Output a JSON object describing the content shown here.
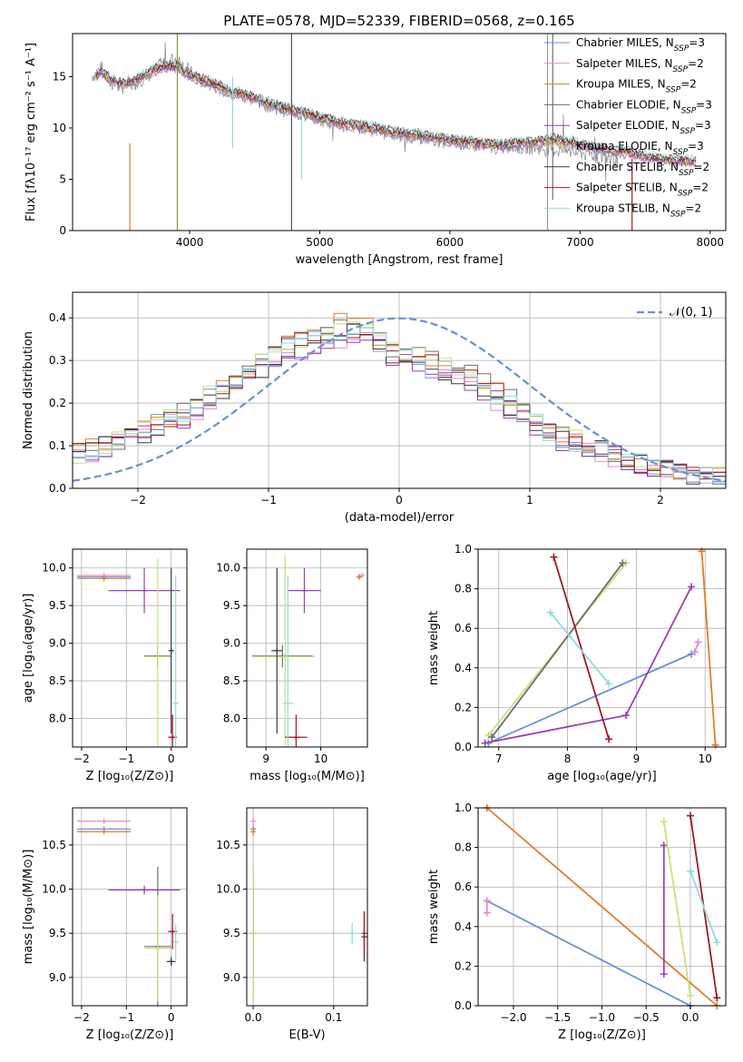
{
  "title": "PLATE=0578, MJD=52339, FIBERID=0568, z=0.165",
  "colors": {
    "chabrier_miles": "#6a8fd8",
    "salpeter_miles": "#e58ccb",
    "kroupa_miles": "#de7d2a",
    "chabrier_elodie": "#6e6e6e",
    "salpeter_elodie": "#9a3fb4",
    "kroupa_elodie": "#c7e27b",
    "chabrier_stelib": "#3a3a3a",
    "salpeter_stelib": "#9e1a22",
    "kroupa_stelib": "#8fdcdc",
    "data": "#888888",
    "normal": "#6a8fd8"
  },
  "chart_data": [
    {
      "id": "spectrum",
      "type": "line",
      "xlabel": "wavelength [Angstrom, rest frame]",
      "ylabel": "Flux [fλ10⁻¹⁷ erg cm⁻² s⁻¹ A⁻¹]",
      "xlim": [
        3100,
        8120
      ],
      "ylim": [
        0,
        19.2
      ],
      "xticks": [
        4000,
        5000,
        6000,
        7000,
        8000
      ],
      "yticks": [
        0,
        5,
        10,
        15
      ],
      "grid": false,
      "legend_position": "upper right",
      "legend": [
        {
          "key": "chabrier_miles",
          "label": "Chabrier MILES, N",
          "sub": "SSP",
          "n": "=3"
        },
        {
          "key": "salpeter_miles",
          "label": "Salpeter MILES, N",
          "sub": "SSP",
          "n": "=2"
        },
        {
          "key": "kroupa_miles",
          "label": "Kroupa MILES, N",
          "sub": "SSP",
          "n": "=2"
        },
        {
          "key": "chabrier_elodie",
          "label": "Chabrier ELODIE, N",
          "sub": "SSP",
          "n": "=3"
        },
        {
          "key": "salpeter_elodie",
          "label": "Salpeter ELODIE, N",
          "sub": "SSP",
          "n": "=3"
        },
        {
          "key": "kroupa_elodie",
          "label": "Kroupa ELODIE, N",
          "sub": "SSP",
          "n": "=3"
        },
        {
          "key": "chabrier_stelib",
          "label": "Chabrier STELIB, N",
          "sub": "SSP",
          "n": "=2"
        },
        {
          "key": "salpeter_stelib",
          "label": "Salpeter STELIB, N",
          "sub": "SSP",
          "n": "=2"
        },
        {
          "key": "kroupa_stelib",
          "label": "Kroupa STELIB, N",
          "sub": "SSP",
          "n": "=2"
        }
      ],
      "data_curve": [
        [
          3250,
          15.1
        ],
        [
          3320,
          15.8
        ],
        [
          3400,
          14.4
        ],
        [
          3500,
          14.0
        ],
        [
          3600,
          14.6
        ],
        [
          3700,
          15.3
        ],
        [
          3800,
          16.2
        ],
        [
          3900,
          16.8
        ],
        [
          4000,
          15.4
        ],
        [
          4100,
          14.6
        ],
        [
          4200,
          14.2
        ],
        [
          4300,
          13.4
        ],
        [
          4400,
          13.2
        ],
        [
          4500,
          12.8
        ],
        [
          4600,
          12.3
        ],
        [
          4700,
          11.9
        ],
        [
          4800,
          11.6
        ],
        [
          4900,
          11.3
        ],
        [
          5000,
          10.9
        ],
        [
          5100,
          10.6
        ],
        [
          5200,
          10.3
        ],
        [
          5400,
          9.9
        ],
        [
          5600,
          9.4
        ],
        [
          5800,
          9.1
        ],
        [
          6000,
          8.7
        ],
        [
          6200,
          8.4
        ],
        [
          6400,
          8.1
        ],
        [
          6600,
          8.2
        ],
        [
          6800,
          7.9
        ],
        [
          7000,
          7.6
        ],
        [
          7200,
          7.2
        ],
        [
          7300,
          6.9
        ]
      ],
      "model_curve": [
        [
          3280,
          15.0
        ],
        [
          3320,
          15.5
        ],
        [
          3400,
          14.6
        ],
        [
          3500,
          14.3
        ],
        [
          3600,
          14.8
        ],
        [
          3700,
          15.5
        ],
        [
          3800,
          16.0
        ],
        [
          3900,
          16.0
        ],
        [
          4000,
          15.2
        ],
        [
          4100,
          14.6
        ],
        [
          4200,
          14.3
        ],
        [
          4300,
          13.6
        ],
        [
          4400,
          13.3
        ],
        [
          4500,
          12.9
        ],
        [
          4600,
          12.4
        ],
        [
          4700,
          12.0
        ],
        [
          4800,
          11.7
        ],
        [
          4900,
          11.4
        ],
        [
          5000,
          11.0
        ],
        [
          5100,
          10.7
        ],
        [
          5200,
          10.4
        ],
        [
          5400,
          10.0
        ],
        [
          5600,
          9.5
        ],
        [
          5800,
          9.2
        ],
        [
          6000,
          8.8
        ],
        [
          6200,
          8.5
        ],
        [
          6400,
          8.3
        ],
        [
          6600,
          8.6
        ],
        [
          6800,
          8.9
        ],
        [
          7000,
          8.4
        ],
        [
          7200,
          7.9
        ],
        [
          7400,
          7.5
        ],
        [
          7600,
          7.0
        ],
        [
          7800,
          6.8
        ],
        [
          7900,
          6.7
        ]
      ],
      "spikes": [
        {
          "x": 4783,
          "ymin": 0,
          "ymax": 19.2,
          "color": "#555555"
        },
        {
          "x": 3905,
          "ymin": 0,
          "ymax": 19.2,
          "color": "#7a9a3a"
        },
        {
          "x": 3540,
          "ymin": 0,
          "ymax": 8.5,
          "color": "#de7d2a"
        },
        {
          "x": 6750,
          "ymin": 0,
          "ymax": 19.2,
          "color": "#999999"
        },
        {
          "x": 6790,
          "ymin": 3,
          "ymax": 19.2,
          "color": "#6e6e6e"
        },
        {
          "x": 4330,
          "ymin": 8,
          "ymax": 15,
          "color": "#8fdcdc"
        },
        {
          "x": 4860,
          "ymin": 5,
          "ymax": 12,
          "color": "#8fdcdc"
        },
        {
          "x": 7400,
          "ymin": 0,
          "ymax": 7,
          "color": "#9e1a22"
        }
      ]
    },
    {
      "id": "residuals",
      "type": "line",
      "xlabel": "(data-model)/error",
      "ylabel": "Normed distribution",
      "xlim": [
        -2.5,
        2.5
      ],
      "ylim": [
        0,
        0.46
      ],
      "xticks": [
        -2,
        -1,
        0,
        1,
        2
      ],
      "yticks": [
        0.0,
        0.1,
        0.2,
        0.3,
        0.4
      ],
      "grid": true,
      "legend_position": "upper right",
      "normal_label": "𝒩(0, 1)",
      "hist_bin_width": 0.1,
      "hist_base": [
        0.08,
        0.09,
        0.1,
        0.11,
        0.12,
        0.13,
        0.15,
        0.16,
        0.17,
        0.19,
        0.21,
        0.23,
        0.25,
        0.27,
        0.29,
        0.31,
        0.33,
        0.34,
        0.35,
        0.36,
        0.37,
        0.37,
        0.36,
        0.34,
        0.32,
        0.31,
        0.3,
        0.29,
        0.28,
        0.27,
        0.26,
        0.24,
        0.22,
        0.2,
        0.18,
        0.16,
        0.14,
        0.12,
        0.11,
        0.1,
        0.09,
        0.08,
        0.07,
        0.06,
        0.05,
        0.045,
        0.04,
        0.035,
        0.03,
        0.025
      ],
      "hist_offsets": [
        0.0,
        -0.02,
        0.02,
        0.01,
        -0.015,
        0.015,
        -0.01,
        0.005,
        -0.005
      ]
    },
    {
      "id": "age_vs_Z",
      "type": "scatter",
      "xlabel": "Z [log₁₀(Z/Z⊙)]",
      "ylabel": "age  [log₁₀(age/yr)]",
      "xlim": [
        -2.2,
        0.35
      ],
      "ylim": [
        7.62,
        10.25
      ],
      "xticks": [
        -2,
        -1,
        0
      ],
      "yticks": [
        8.0,
        8.5,
        9.0,
        9.5,
        10.0
      ],
      "grid": true,
      "points": [
        {
          "key": "chabrier_miles",
          "x": -1.5,
          "y": 9.88,
          "xerr": 0.6,
          "yerr": 0.02
        },
        {
          "key": "salpeter_miles",
          "x": -1.5,
          "y": 9.9,
          "xerr": 0.6,
          "yerr": 0.02
        },
        {
          "key": "kroupa_miles",
          "x": -1.5,
          "y": 9.86,
          "xerr": 0.6,
          "yerr": 0.02
        },
        {
          "key": "chabrier_elodie",
          "x": -0.3,
          "y": 8.83,
          "xerr": 0.3,
          "yerr": 0.15
        },
        {
          "key": "salpeter_elodie",
          "x": -0.6,
          "y": 9.7,
          "xerr": 0.8,
          "yerr": 0.3
        },
        {
          "key": "kroupa_elodie",
          "x": -0.3,
          "y": 8.82,
          "xerr": 0.3,
          "yerr": 1.3
        },
        {
          "key": "chabrier_stelib",
          "x": 0.0,
          "y": 8.9,
          "xerr": 0.05,
          "yerr": 1.1
        },
        {
          "key": "salpeter_stelib",
          "x": 0.03,
          "y": 7.75,
          "xerr": 0.1,
          "yerr": 0.3
        },
        {
          "key": "kroupa_stelib",
          "x": 0.1,
          "y": 8.2,
          "xerr": 0.05,
          "yerr": 1.7
        }
      ]
    },
    {
      "id": "age_vs_mass",
      "type": "scatter",
      "xlabel": "mass [log₁₀(M/M⊙)]",
      "ylabel": "",
      "xlim": [
        8.65,
        10.85
      ],
      "ylim": [
        7.62,
        10.25
      ],
      "xticks": [
        9,
        10
      ],
      "yticks": [
        8.0,
        8.5,
        9.0,
        9.5,
        10.0
      ],
      "grid": true,
      "points": [
        {
          "key": "chabrier_miles",
          "x": 10.7,
          "y": 9.88,
          "xerr": 0.05,
          "yerr": 0.02
        },
        {
          "key": "salpeter_miles",
          "x": 10.75,
          "y": 9.9,
          "xerr": 0.05,
          "yerr": 0.02
        },
        {
          "key": "kroupa_miles",
          "x": 10.7,
          "y": 9.88,
          "xerr": 0.05,
          "yerr": 0.02
        },
        {
          "key": "chabrier_elodie",
          "x": 9.3,
          "y": 8.83,
          "xerr": 0.55,
          "yerr": 0.15
        },
        {
          "key": "salpeter_elodie",
          "x": 9.7,
          "y": 9.7,
          "xerr": 0.3,
          "yerr": 0.3
        },
        {
          "key": "kroupa_elodie",
          "x": 9.35,
          "y": 8.82,
          "xerr": 0.55,
          "yerr": 1.35
        },
        {
          "key": "chabrier_stelib",
          "x": 9.2,
          "y": 8.9,
          "xerr": 0.1,
          "yerr": 1.1
        },
        {
          "key": "salpeter_stelib",
          "x": 9.55,
          "y": 7.75,
          "xerr": 0.2,
          "yerr": 0.3
        },
        {
          "key": "kroupa_stelib",
          "x": 9.4,
          "y": 8.2,
          "xerr": 0.1,
          "yerr": 1.7
        }
      ]
    },
    {
      "id": "weight_vs_age",
      "type": "line",
      "xlabel": "age  [log₁₀(age/yr)]",
      "ylabel": "mass weight",
      "xlim": [
        6.7,
        10.3
      ],
      "ylim": [
        0,
        1.0
      ],
      "xticks": [
        7,
        8,
        9,
        10
      ],
      "yticks": [
        0.0,
        0.2,
        0.4,
        0.6,
        0.8,
        1.0
      ],
      "grid": true,
      "series": [
        {
          "key": "chabrier_miles",
          "points": [
            [
              6.85,
              0.02
            ],
            [
              9.8,
              0.47
            ]
          ]
        },
        {
          "key": "salpeter_miles",
          "points": [
            [
              9.85,
              0.48
            ],
            [
              9.9,
              0.53
            ]
          ]
        },
        {
          "key": "kroupa_miles",
          "points": [
            [
              9.95,
              0.99
            ],
            [
              10.15,
              0.01
            ]
          ]
        },
        {
          "key": "salpeter_elodie",
          "points": [
            [
              6.8,
              0.02
            ],
            [
              8.85,
              0.16
            ],
            [
              9.8,
              0.81
            ]
          ]
        },
        {
          "key": "kroupa_elodie",
          "points": [
            [
              6.85,
              0.06
            ],
            [
              8.85,
              0.93
            ]
          ]
        },
        {
          "key": "chabrier_elodie",
          "points": [
            [
              6.9,
              0.05
            ],
            [
              8.8,
              0.93
            ]
          ]
        },
        {
          "key": "salpeter_stelib",
          "points": [
            [
              7.8,
              0.96
            ],
            [
              8.6,
              0.04
            ]
          ]
        },
        {
          "key": "kroupa_stelib",
          "points": [
            [
              7.75,
              0.68
            ],
            [
              8.6,
              0.32
            ]
          ]
        }
      ]
    },
    {
      "id": "mass_vs_Z",
      "type": "scatter",
      "xlabel": "Z [log₁₀(Z/Z⊙)]",
      "ylabel": "mass [log₁₀(M/M⊙)]",
      "xlim": [
        -2.2,
        0.35
      ],
      "ylim": [
        8.68,
        10.92
      ],
      "xticks": [
        -2,
        -1,
        0
      ],
      "yticks": [
        9.0,
        9.5,
        10.0,
        10.5
      ],
      "grid": true,
      "points": [
        {
          "key": "chabrier_miles",
          "x": -1.5,
          "y": 10.68,
          "xerr": 0.6,
          "yerr": 0.02
        },
        {
          "key": "salpeter_miles",
          "x": -1.5,
          "y": 10.77,
          "xerr": 0.6,
          "yerr": 0.02
        },
        {
          "key": "kroupa_miles",
          "x": -1.5,
          "y": 10.65,
          "xerr": 0.6,
          "yerr": 0.02
        },
        {
          "key": "chabrier_elodie",
          "x": -0.3,
          "y": 9.35,
          "xerr": 0.3,
          "yerr": 0.9
        },
        {
          "key": "salpeter_elodie",
          "x": -0.6,
          "y": 9.99,
          "xerr": 0.8,
          "yerr": 0.05
        },
        {
          "key": "kroupa_elodie",
          "x": -0.3,
          "y": 9.33,
          "xerr": 0.3,
          "yerr": 0.6
        },
        {
          "key": "chabrier_stelib",
          "x": 0.0,
          "y": 9.18,
          "xerr": 0.1,
          "yerr": 0.05
        },
        {
          "key": "salpeter_stelib",
          "x": 0.03,
          "y": 9.52,
          "xerr": 0.1,
          "yerr": 0.2
        },
        {
          "key": "kroupa_stelib",
          "x": 0.1,
          "y": 9.4,
          "xerr": 0.05,
          "yerr": 0.2
        }
      ]
    },
    {
      "id": "mass_vs_ebv",
      "type": "scatter",
      "xlabel": "E(B-V)",
      "ylabel": "",
      "xlim": [
        -0.008,
        0.142
      ],
      "ylim": [
        8.68,
        10.92
      ],
      "xticks": [
        0.0,
        0.1
      ],
      "yticks": [
        9.0,
        9.5,
        10.0,
        10.5
      ],
      "grid": true,
      "points": [
        {
          "key": "chabrier_miles",
          "x": 0.0,
          "y": 10.68,
          "xerr": 0,
          "yerr": 0.05
        },
        {
          "key": "salpeter_miles",
          "x": 0.0,
          "y": 10.77,
          "xerr": 0,
          "yerr": 0.05
        },
        {
          "key": "kroupa_miles",
          "x": 0.0,
          "y": 10.65,
          "xerr": 0,
          "yerr": 0.05
        },
        {
          "key": "chabrier_elodie",
          "x": 0.0,
          "y": 9.5,
          "xerr": 0,
          "yerr": 0.75
        },
        {
          "key": "salpeter_elodie",
          "x": 0.0,
          "y": 9.5,
          "xerr": 0,
          "yerr": 0.5
        },
        {
          "key": "kroupa_elodie",
          "x": 0.0,
          "y": 9.5,
          "xerr": 0,
          "yerr": 0.75
        },
        {
          "key": "chabrier_stelib",
          "x": 0.138,
          "y": 9.46,
          "xerr": 0,
          "yerr": 0.28
        },
        {
          "key": "salpeter_stelib",
          "x": 0.138,
          "y": 9.5,
          "xerr": 0,
          "yerr": 0.25
        },
        {
          "key": "kroupa_stelib",
          "x": 0.123,
          "y": 9.5,
          "xerr": 0,
          "yerr": 0.12
        }
      ]
    },
    {
      "id": "weight_vs_Z",
      "type": "line",
      "xlabel": "Z [log₁₀(Z/Z⊙)]",
      "ylabel": "mass weight",
      "xlim": [
        -2.4,
        0.4
      ],
      "ylim": [
        0,
        1.0
      ],
      "xticks": [
        -2.0,
        -1.5,
        -1.0,
        -0.5,
        0.0
      ],
      "yticks": [
        0.0,
        0.2,
        0.4,
        0.6,
        0.8,
        1.0
      ],
      "grid": true,
      "series": [
        {
          "key": "chabrier_miles",
          "points": [
            [
              -2.3,
              0.53
            ],
            [
              0.0,
              0.0
            ]
          ]
        },
        {
          "key": "salpeter_miles",
          "points": [
            [
              -2.3,
              0.47
            ],
            [
              -2.3,
              0.53
            ]
          ]
        },
        {
          "key": "kroupa_miles",
          "points": [
            [
              -2.3,
              1.0
            ],
            [
              0.3,
              0.0
            ]
          ]
        },
        {
          "key": "salpeter_elodie",
          "points": [
            [
              -0.3,
              0.16
            ],
            [
              -0.3,
              0.81
            ]
          ]
        },
        {
          "key": "kroupa_elodie",
          "points": [
            [
              -0.3,
              0.93
            ],
            [
              0.0,
              0.05
            ]
          ]
        },
        {
          "key": "salpeter_stelib",
          "points": [
            [
              0.0,
              0.96
            ],
            [
              0.3,
              0.04
            ]
          ]
        },
        {
          "key": "kroupa_stelib",
          "points": [
            [
              0.0,
              0.68
            ],
            [
              0.3,
              0.32
            ]
          ]
        }
      ]
    }
  ]
}
